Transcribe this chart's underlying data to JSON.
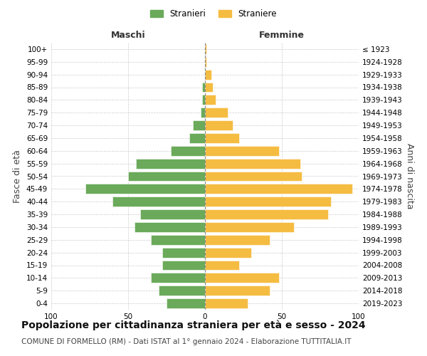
{
  "age_groups": [
    "0-4",
    "5-9",
    "10-14",
    "15-19",
    "20-24",
    "25-29",
    "30-34",
    "35-39",
    "40-44",
    "45-49",
    "50-54",
    "55-59",
    "60-64",
    "65-69",
    "70-74",
    "75-79",
    "80-84",
    "85-89",
    "90-94",
    "95-99",
    "100+"
  ],
  "birth_years": [
    "2019-2023",
    "2014-2018",
    "2009-2013",
    "2004-2008",
    "1999-2003",
    "1994-1998",
    "1989-1993",
    "1984-1988",
    "1979-1983",
    "1974-1978",
    "1969-1973",
    "1964-1968",
    "1959-1963",
    "1954-1958",
    "1949-1953",
    "1944-1948",
    "1939-1943",
    "1934-1938",
    "1929-1933",
    "1924-1928",
    "≤ 1923"
  ],
  "maschi": [
    25,
    30,
    35,
    28,
    28,
    35,
    46,
    42,
    60,
    78,
    50,
    45,
    22,
    10,
    8,
    3,
    2,
    2,
    0,
    0,
    0
  ],
  "femmine": [
    28,
    42,
    48,
    22,
    30,
    42,
    58,
    80,
    82,
    96,
    63,
    62,
    48,
    22,
    18,
    15,
    7,
    5,
    4,
    1,
    1
  ],
  "maschi_color": "#6aaa5a",
  "femmine_color": "#f5bc42",
  "bar_edge_color": "white",
  "title": "Popolazione per cittadinanza straniera per età e sesso - 2024",
  "subtitle": "COMUNE DI FORMELLO (RM) - Dati ISTAT al 1° gennaio 2024 - Elaborazione TUTTITALIA.IT",
  "xlabel_left": "Maschi",
  "xlabel_right": "Femmine",
  "ylabel_left": "Fasce di età",
  "ylabel_right": "Anni di nascita",
  "legend_maschi": "Stranieri",
  "legend_femmine": "Straniere",
  "xlim": 100,
  "background_color": "#ffffff",
  "grid_color": "#cccccc",
  "title_fontsize": 10,
  "subtitle_fontsize": 7.5,
  "axis_label_fontsize": 9,
  "tick_fontsize": 7.5
}
